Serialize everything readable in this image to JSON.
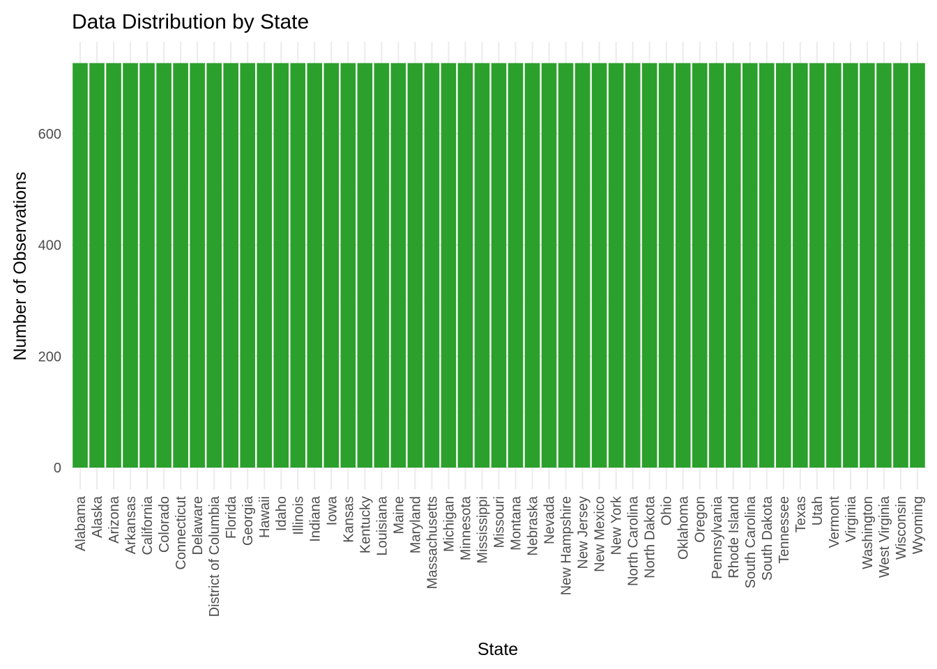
{
  "chart_data": {
    "type": "bar",
    "title": "Data Distribution by State",
    "xlabel": "State",
    "ylabel": "Number of Observations",
    "categories": [
      "Alabama",
      "Alaska",
      "Arizona",
      "Arkansas",
      "California",
      "Colorado",
      "Connecticut",
      "Delaware",
      "District of Columbia",
      "Florida",
      "Georgia",
      "Hawaii",
      "Idaho",
      "Illinois",
      "Indiana",
      "Iowa",
      "Kansas",
      "Kentucky",
      "Louisiana",
      "Maine",
      "Maryland",
      "Massachusetts",
      "Michigan",
      "Minnesota",
      "Mississippi",
      "Missouri",
      "Montana",
      "Nebraska",
      "Nevada",
      "New Hampshire",
      "New Jersey",
      "New Mexico",
      "New York",
      "North Carolina",
      "North Dakota",
      "Ohio",
      "Oklahoma",
      "Oregon",
      "Pennsylvania",
      "Rhode Island",
      "South Carolina",
      "South Dakota",
      "Tennessee",
      "Texas",
      "Utah",
      "Vermont",
      "Virginia",
      "Washington",
      "West Virginia",
      "Wisconsin",
      "Wyoming"
    ],
    "values": [
      727,
      727,
      727,
      727,
      727,
      727,
      727,
      727,
      727,
      727,
      727,
      727,
      727,
      727,
      727,
      727,
      727,
      727,
      727,
      727,
      727,
      727,
      727,
      727,
      727,
      727,
      727,
      727,
      727,
      727,
      727,
      727,
      727,
      727,
      727,
      727,
      727,
      727,
      727,
      727,
      727,
      727,
      727,
      727,
      727,
      727,
      727,
      727,
      727,
      727,
      727
    ],
    "yticks": [
      "0",
      "200",
      "400",
      "600"
    ],
    "ylim": [
      0,
      760
    ],
    "bar_color": "#2ca02c",
    "grid": true,
    "legend": "none"
  }
}
